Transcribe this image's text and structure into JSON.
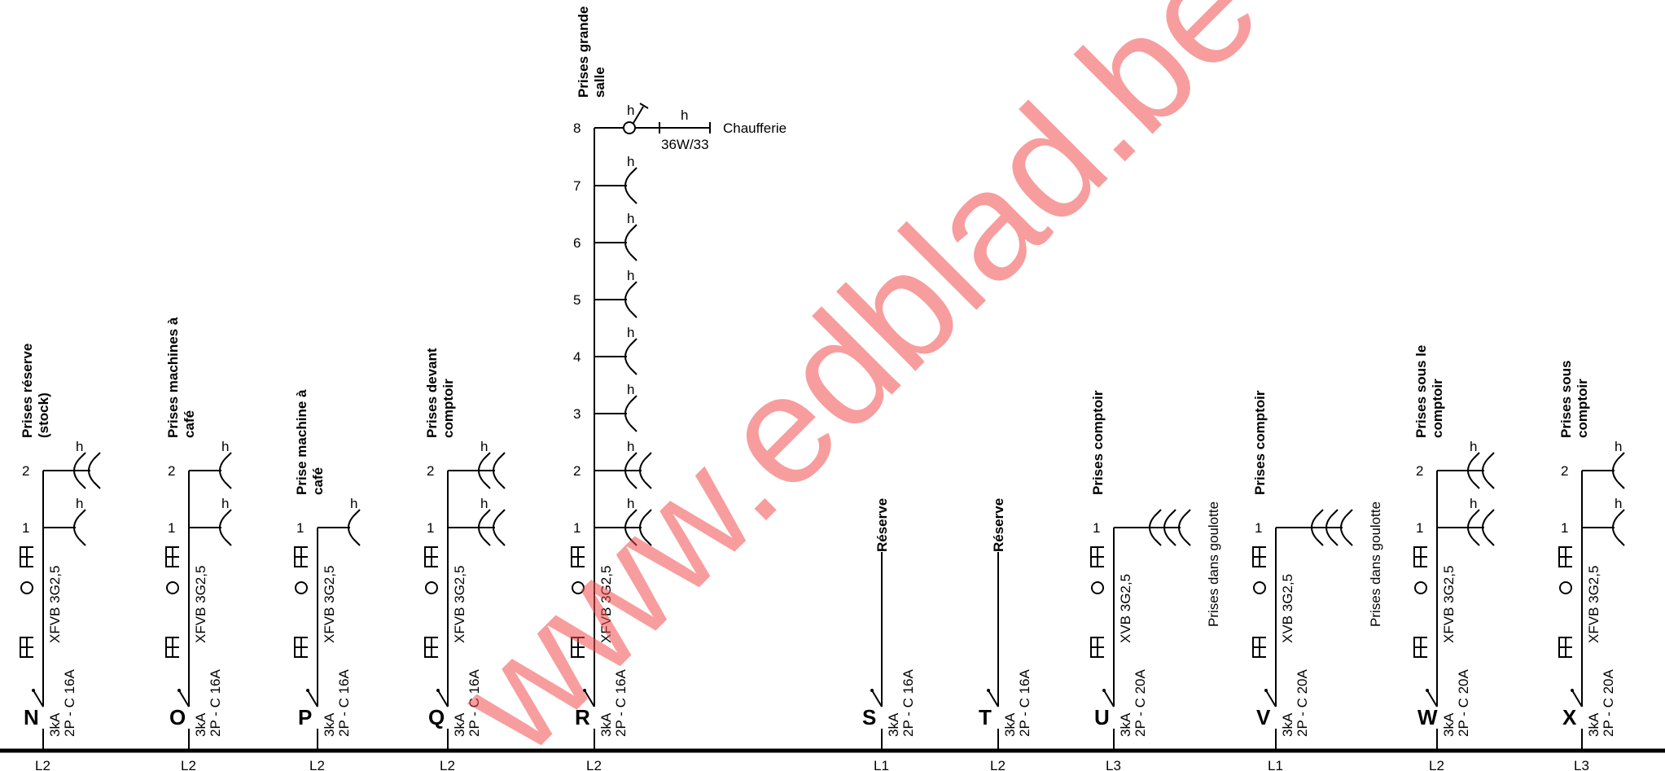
{
  "watermark": "www.edblad.be",
  "circuits": [
    {
      "letter": "N",
      "phase": "L2",
      "label": [
        "Prises réserve",
        "(stock)"
      ],
      "cable": "XFVB 3G2,5",
      "breaker": [
        "3kA",
        "2P - C 16A"
      ],
      "outlets": [
        {
          "n": "2",
          "count": 2,
          "h": "h"
        },
        {
          "n": "1",
          "count": 1,
          "h": "h"
        }
      ],
      "note": "",
      "spare": false
    },
    {
      "letter": "O",
      "phase": "L2",
      "label": [
        "Prises machines à",
        "café"
      ],
      "cable": "XFVB 3G2,5",
      "breaker": [
        "3kA",
        "2P - C 16A"
      ],
      "outlets": [
        {
          "n": "2",
          "count": 1,
          "h": "h"
        },
        {
          "n": "1",
          "count": 1,
          "h": "h"
        }
      ],
      "note": "",
      "spare": false
    },
    {
      "letter": "P",
      "phase": "L2",
      "label": [
        "Prise machine à",
        "café"
      ],
      "cable": "XFVB 3G2,5",
      "breaker": [
        "3kA",
        "2P - C 16A"
      ],
      "outlets": [
        {
          "n": "1",
          "count": 1,
          "h": "h"
        }
      ],
      "note": "",
      "spare": false
    },
    {
      "letter": "Q",
      "phase": "L2",
      "label": [
        "Prises devant",
        "comptoir"
      ],
      "cable": "XFVB 3G2,5",
      "breaker": [
        "3kA",
        "2P - C 16A"
      ],
      "outlets": [
        {
          "n": "2",
          "count": 2,
          "h": "h"
        },
        {
          "n": "1",
          "count": 2,
          "h": "h"
        }
      ],
      "note": "",
      "spare": false
    },
    {
      "letter": "R",
      "phase": "L2",
      "label": [
        "Prises grande",
        "salle"
      ],
      "cable": "XFVB 3G2,5",
      "breaker": [
        "3kA",
        "2P - C 16A"
      ],
      "outlets": [
        {
          "n": "7",
          "count": 1,
          "h": "h"
        },
        {
          "n": "6",
          "count": 1,
          "h": "h"
        },
        {
          "n": "5",
          "count": 1,
          "h": "h"
        },
        {
          "n": "4",
          "count": 1,
          "h": "h"
        },
        {
          "n": "3",
          "count": 1,
          "h": "h"
        },
        {
          "n": "2",
          "count": 2,
          "h": "h"
        },
        {
          "n": "1",
          "count": 2,
          "h": "h"
        }
      ],
      "note": "",
      "spare": false
    },
    {
      "letter": "S",
      "phase": "L1",
      "label": [
        "Réserve"
      ],
      "cable": "",
      "breaker": [
        "3kA",
        "2P - C 16A"
      ],
      "outlets": [],
      "note": "",
      "spare": true
    },
    {
      "letter": "T",
      "phase": "L2",
      "label": [
        "Réserve"
      ],
      "cable": "",
      "breaker": [
        "3kA",
        "2P - C 16A"
      ],
      "outlets": [],
      "note": "",
      "spare": true
    },
    {
      "letter": "U",
      "phase": "L3",
      "label": [
        "Prises comptoir"
      ],
      "cable": "XVB 3G2,5",
      "breaker": [
        "3kA",
        "2P - C 20A"
      ],
      "outlets": [
        {
          "n": "1",
          "count": 3,
          "h": ""
        }
      ],
      "note": "Prises dans goulotte",
      "spare": false
    },
    {
      "letter": "V",
      "phase": "L1",
      "label": [
        "Prises comptoir"
      ],
      "cable": "XVB 3G2,5",
      "breaker": [
        "3kA",
        "2P - C 20A"
      ],
      "outlets": [
        {
          "n": "1",
          "count": 3,
          "h": ""
        }
      ],
      "note": "Prises dans goulotte",
      "spare": false
    },
    {
      "letter": "W",
      "phase": "L2",
      "label": [
        "Prises sous le",
        "comptoir"
      ],
      "cable": "XFVB 3G2,5",
      "breaker": [
        "3kA",
        "2P - C 20A"
      ],
      "outlets": [
        {
          "n": "2",
          "count": 2,
          "h": "h"
        },
        {
          "n": "1",
          "count": 2,
          "h": "h"
        }
      ],
      "note": "",
      "spare": false
    },
    {
      "letter": "X",
      "phase": "L3",
      "label": [
        "Prises sous",
        "comptoir"
      ],
      "cable": "XFVB 3G2,5",
      "breaker": [
        "3kA",
        "2P - C 20A"
      ],
      "outlets": [
        {
          "n": "2",
          "count": 1,
          "h": "h"
        },
        {
          "n": "1",
          "count": 1,
          "h": "h"
        }
      ],
      "note": "",
      "spare": false
    }
  ],
  "r_extra": {
    "n": "8",
    "h1": "h",
    "h2": "h",
    "lamp": "36W/33",
    "dest": "Chaufferie"
  }
}
